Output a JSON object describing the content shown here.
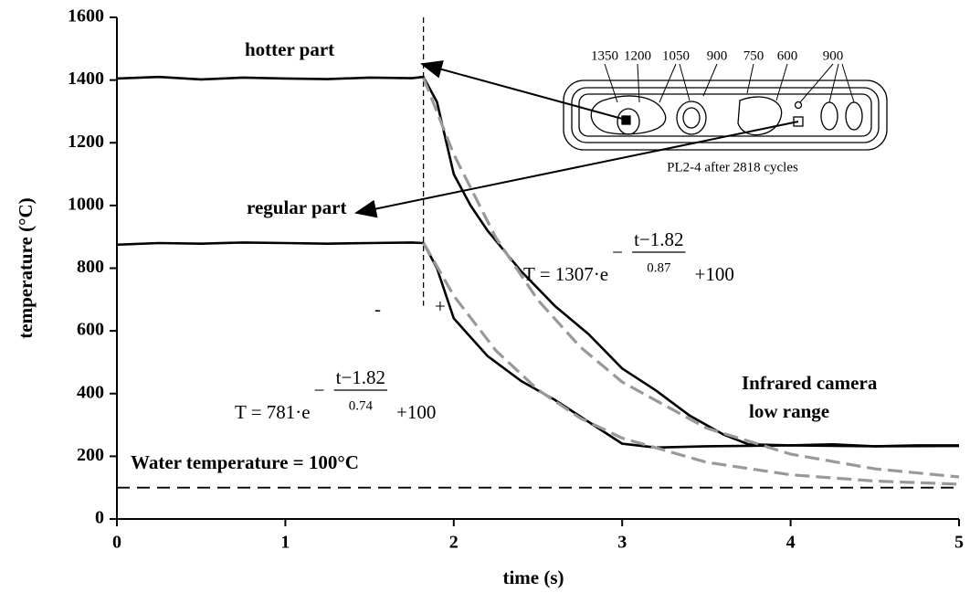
{
  "chart_data": {
    "type": "line",
    "xlabel": "time (s)",
    "ylabel": "temperature (°C)",
    "xlim": [
      0,
      5
    ],
    "ylim": [
      0,
      1600
    ],
    "xticks": [
      0,
      1,
      2,
      3,
      4,
      5
    ],
    "yticks": [
      0,
      200,
      400,
      600,
      800,
      1000,
      1200,
      1400,
      1600
    ],
    "grid": false,
    "series": [
      {
        "name": "hotter part",
        "color": "#000000",
        "style": "solid",
        "x": [
          0,
          0.25,
          0.5,
          0.75,
          1,
          1.25,
          1.5,
          1.75,
          1.82,
          1.9,
          2.0,
          2.1,
          2.2,
          2.4,
          2.6,
          2.8,
          3.0,
          3.2,
          3.4,
          3.6,
          3.75,
          4,
          4.25,
          4.5,
          4.75,
          5
        ],
        "values": [
          1405,
          1410,
          1402,
          1408,
          1405,
          1403,
          1408,
          1406,
          1410,
          1330,
          1100,
          1000,
          920,
          790,
          680,
          590,
          480,
          410,
          330,
          270,
          238,
          235,
          238,
          232,
          235,
          235
        ]
      },
      {
        "name": "regular part",
        "color": "#000000",
        "style": "solid",
        "x": [
          0,
          0.25,
          0.5,
          0.75,
          1,
          1.25,
          1.5,
          1.75,
          1.82,
          1.9,
          2.0,
          2.2,
          2.4,
          2.6,
          2.8,
          3.0,
          3.2,
          3.5,
          4,
          4.5,
          5
        ],
        "values": [
          875,
          880,
          878,
          882,
          880,
          878,
          880,
          882,
          880,
          800,
          640,
          520,
          440,
          380,
          310,
          240,
          228,
          232,
          235,
          232,
          233
        ]
      },
      {
        "color": "#999999",
        "style": "dashed",
        "x": [
          1.82,
          2.0,
          2.25,
          2.5,
          2.75,
          3.0,
          3.5,
          4.0,
          4.5,
          5.0
        ],
        "values": [
          1407,
          1163,
          897,
          698,
          549,
          437,
          290,
          207,
          160,
          134
        ]
      },
      {
        "color": "#999999",
        "style": "dashed",
        "x": [
          1.82,
          2.0,
          2.25,
          2.5,
          2.75,
          3.0,
          3.5,
          4.0,
          4.5,
          5.0
        ],
        "values": [
          881,
          712,
          537,
          412,
          322,
          258,
          181,
          141,
          121,
          111
        ]
      },
      {
        "color": "#000000",
        "style": "water",
        "x": [
          0,
          5
        ],
        "values": [
          100,
          100
        ]
      }
    ],
    "vline": {
      "x": 1.82,
      "ymin": 680,
      "ymax": 1600
    },
    "annotations": [
      "hotter part",
      "regular part",
      "Water temperature = 100°C",
      "Infrared camera",
      "low range",
      "-",
      "+"
    ],
    "formulas": [
      {
        "lhs": "T = 1307·e",
        "sign": "−",
        "numerator": "t−1.82",
        "denominator": "0.87",
        "rhs": "+100"
      },
      {
        "lhs": "T = 781·e",
        "sign": "−",
        "numerator": "t−1.82",
        "denominator": "0.74",
        "rhs": "+100"
      }
    ],
    "inset": {
      "labels": [
        "1350",
        "1200",
        "1050",
        "900",
        "750",
        "600",
        "900"
      ],
      "caption": "PL2-4 after 2818 cycles"
    }
  }
}
